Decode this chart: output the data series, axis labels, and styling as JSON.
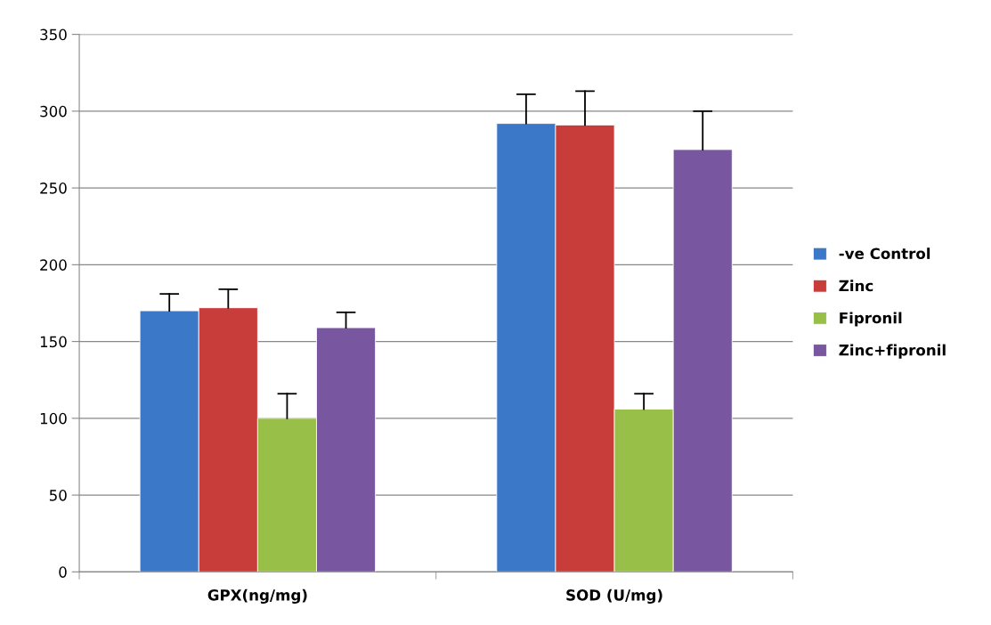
{
  "chart_data": {
    "type": "bar",
    "categories": [
      "GPX(ng/mg)",
      "SOD (U/mg)"
    ],
    "series": [
      {
        "name": "-ve Control",
        "color": "#3c78c8",
        "values": [
          170,
          292
        ],
        "errors": [
          [
            170,
            181
          ],
          [
            292,
            311
          ]
        ]
      },
      {
        "name": "Zinc",
        "color": "#c83c3a",
        "values": [
          172,
          291
        ],
        "errors": [
          [
            172,
            184
          ],
          [
            291,
            313
          ]
        ]
      },
      {
        "name": "Fipronil",
        "color": "#98bf48",
        "values": [
          100,
          106
        ],
        "errors": [
          [
            100,
            116
          ],
          [
            106,
            116
          ]
        ]
      },
      {
        "name": "Zinc+fipronil",
        "color": "#7856a0",
        "values": [
          159,
          275
        ],
        "errors": [
          [
            159,
            169
          ],
          [
            275,
            300
          ]
        ]
      }
    ],
    "ylim": [
      0,
      350
    ],
    "yticks": [
      0,
      50,
      100,
      150,
      200,
      250,
      300,
      350
    ],
    "grid": "y",
    "legend": "right"
  }
}
